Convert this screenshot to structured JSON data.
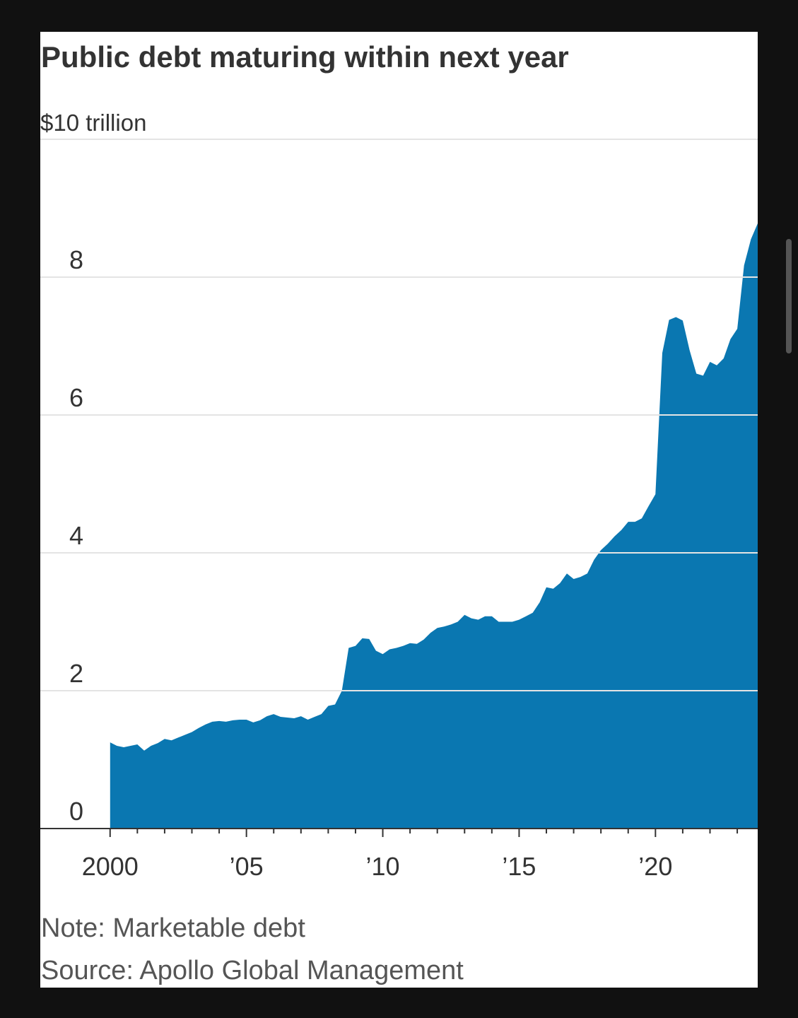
{
  "chart_data": {
    "type": "area",
    "title": "Public debt maturing within next year",
    "note": "Note: Marketable debt",
    "source": "Source: Apollo Global Management",
    "color": "#0a77b1",
    "x": [
      2000,
      2000.25,
      2000.5,
      2000.75,
      2001,
      2001.25,
      2001.5,
      2001.75,
      2002,
      2002.25,
      2002.5,
      2002.75,
      2003,
      2003.25,
      2003.5,
      2003.75,
      2004,
      2004.25,
      2004.5,
      2004.75,
      2005,
      2005.25,
      2005.5,
      2005.75,
      2006,
      2006.25,
      2006.5,
      2006.75,
      2007,
      2007.25,
      2007.5,
      2007.75,
      2008,
      2008.25,
      2008.5,
      2008.75,
      2009,
      2009.25,
      2009.5,
      2009.75,
      2010,
      2010.25,
      2010.5,
      2010.75,
      2011,
      2011.25,
      2011.5,
      2011.75,
      2012,
      2012.25,
      2012.5,
      2012.75,
      2013,
      2013.25,
      2013.5,
      2013.75,
      2014,
      2014.25,
      2014.5,
      2014.75,
      2015,
      2015.25,
      2015.5,
      2015.75,
      2016,
      2016.25,
      2016.5,
      2016.75,
      2017,
      2017.25,
      2017.5,
      2017.75,
      2018,
      2018.25,
      2018.5,
      2018.75,
      2019,
      2019.25,
      2019.5,
      2019.75,
      2020,
      2020.25,
      2020.5,
      2020.75,
      2021,
      2021.25,
      2021.5,
      2021.75,
      2022,
      2022.25,
      2022.5,
      2022.75,
      2023,
      2023.25,
      2023.5,
      2023.75
    ],
    "values": [
      1.25,
      1.2,
      1.18,
      1.2,
      1.22,
      1.13,
      1.2,
      1.24,
      1.3,
      1.28,
      1.32,
      1.36,
      1.4,
      1.46,
      1.51,
      1.55,
      1.56,
      1.55,
      1.57,
      1.58,
      1.58,
      1.54,
      1.57,
      1.63,
      1.66,
      1.62,
      1.61,
      1.6,
      1.63,
      1.58,
      1.62,
      1.66,
      1.78,
      1.8,
      2.0,
      2.62,
      2.65,
      2.76,
      2.75,
      2.58,
      2.53,
      2.6,
      2.62,
      2.65,
      2.69,
      2.68,
      2.74,
      2.84,
      2.91,
      2.93,
      2.96,
      3.0,
      3.1,
      3.05,
      3.03,
      3.08,
      3.08,
      3.0,
      3.0,
      3.0,
      3.03,
      3.08,
      3.13,
      3.28,
      3.5,
      3.48,
      3.56,
      3.7,
      3.62,
      3.65,
      3.7,
      3.9,
      4.04,
      4.13,
      4.24,
      4.33,
      4.45,
      4.45,
      4.5,
      4.68,
      4.85,
      6.9,
      7.38,
      7.42,
      7.37,
      6.94,
      6.6,
      6.57,
      6.77,
      6.72,
      6.82,
      7.1,
      7.25,
      8.17,
      8.55,
      8.78
    ],
    "xlim": [
      1997.44,
      2023.75
    ],
    "xticks": [
      2000,
      {
        "value": 2005,
        "label": "’05"
      },
      {
        "value": 2010,
        "label": "’10"
      },
      {
        "value": 2015,
        "label": "’15"
      },
      {
        "value": 2020,
        "label": "’20"
      }
    ],
    "xminorticks": [
      2001,
      2002,
      2003,
      2004,
      2006,
      2007,
      2008,
      2009,
      2011,
      2012,
      2013,
      2014,
      2016,
      2017,
      2018,
      2019,
      2021,
      2022,
      2023
    ],
    "ylim": [
      0,
      10
    ],
    "yticks": [
      0,
      2,
      4,
      6,
      8,
      {
        "value": 10,
        "label": "$10 trillion"
      }
    ],
    "grid": true
  }
}
